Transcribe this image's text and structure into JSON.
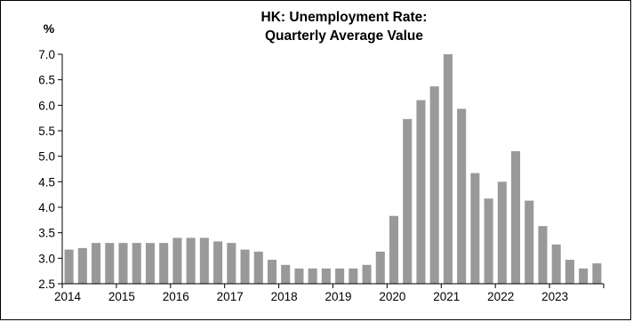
{
  "chart_data": {
    "type": "bar",
    "title": "HK: Unemployment Rate:",
    "subtitle": "Quarterly Average Value",
    "ylabel": "%",
    "xlabel": "",
    "ylim": [
      2.5,
      7.0
    ],
    "yticks": [
      "2.5",
      "3.0",
      "3.5",
      "4.0",
      "4.5",
      "5.0",
      "5.5",
      "6.0",
      "6.5",
      "7.0"
    ],
    "xtick_labels": [
      "2014",
      "2015",
      "2016",
      "2017",
      "2018",
      "2019",
      "2020",
      "2021",
      "2022",
      "2023"
    ],
    "grid": false,
    "bar_color": "#999999",
    "categories": [
      "2014Q1",
      "2014Q2",
      "2014Q3",
      "2014Q4",
      "2015Q1",
      "2015Q2",
      "2015Q3",
      "2015Q4",
      "2016Q1",
      "2016Q2",
      "2016Q3",
      "2016Q4",
      "2017Q1",
      "2017Q2",
      "2017Q3",
      "2017Q4",
      "2018Q1",
      "2018Q2",
      "2018Q3",
      "2018Q4",
      "2019Q1",
      "2019Q2",
      "2019Q3",
      "2019Q4",
      "2020Q1",
      "2020Q2",
      "2020Q3",
      "2020Q4",
      "2021Q1",
      "2021Q2",
      "2021Q3",
      "2021Q4",
      "2022Q1",
      "2022Q2",
      "2022Q3",
      "2022Q4",
      "2023Q1",
      "2023Q2",
      "2023Q3",
      "2023Q4"
    ],
    "values": [
      3.17,
      3.2,
      3.3,
      3.3,
      3.3,
      3.3,
      3.3,
      3.3,
      3.4,
      3.4,
      3.4,
      3.33,
      3.3,
      3.17,
      3.13,
      2.97,
      2.87,
      2.8,
      2.8,
      2.8,
      2.8,
      2.8,
      2.87,
      3.13,
      3.83,
      5.73,
      6.1,
      6.37,
      7.0,
      5.93,
      4.67,
      4.17,
      4.5,
      5.1,
      4.13,
      3.63,
      3.27,
      2.97,
      2.8,
      2.9
    ]
  }
}
